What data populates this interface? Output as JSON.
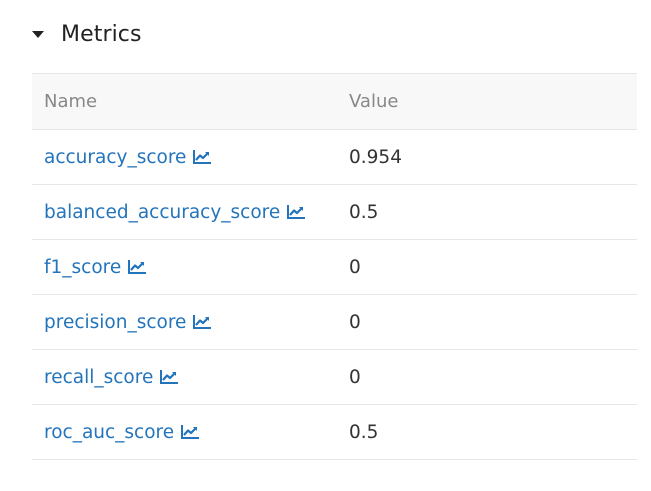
{
  "section": {
    "title": "Metrics"
  },
  "table": {
    "headers": {
      "name": "Name",
      "value": "Value"
    },
    "rows": [
      {
        "name": "accuracy_score",
        "value": "0.954"
      },
      {
        "name": "balanced_accuracy_score",
        "value": "0.5"
      },
      {
        "name": "f1_score",
        "value": "0"
      },
      {
        "name": "precision_score",
        "value": "0"
      },
      {
        "name": "recall_score",
        "value": "0"
      },
      {
        "name": "roc_auc_score",
        "value": "0.5"
      }
    ]
  },
  "icons": {
    "collapse": "caret-down-icon",
    "row_chart": "line-chart-icon"
  },
  "colors": {
    "link": "#2374bb",
    "header_bg": "#f8f8f8",
    "border": "#e6e6e6"
  }
}
